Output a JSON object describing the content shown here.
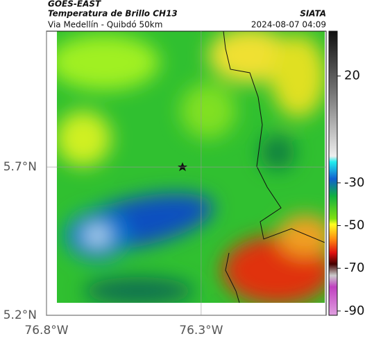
{
  "header": {
    "source": "GOES-EAST",
    "title": "Temperatura de Brillo CH13",
    "subtitle": "Via Medellín - Quibdó 50km",
    "brand": "SIATA",
    "timestamp": "2024-08-07 04:09"
  },
  "map": {
    "xlim": [
      -76.8,
      -75.896
    ],
    "ylim": [
      5.2,
      6.158
    ],
    "xticks": [
      {
        "value": -76.8,
        "label": "76.8°W"
      },
      {
        "value": -76.3,
        "label": "76.3°W"
      }
    ],
    "yticks": [
      {
        "value": 5.7,
        "label": "5.7°N"
      },
      {
        "value": 5.2,
        "label": "5.2°N"
      }
    ]
  },
  "colorbar": {
    "clim": [
      -92,
      41
    ],
    "ticks": [
      20,
      -30,
      -50,
      -70,
      -90
    ]
  }
}
